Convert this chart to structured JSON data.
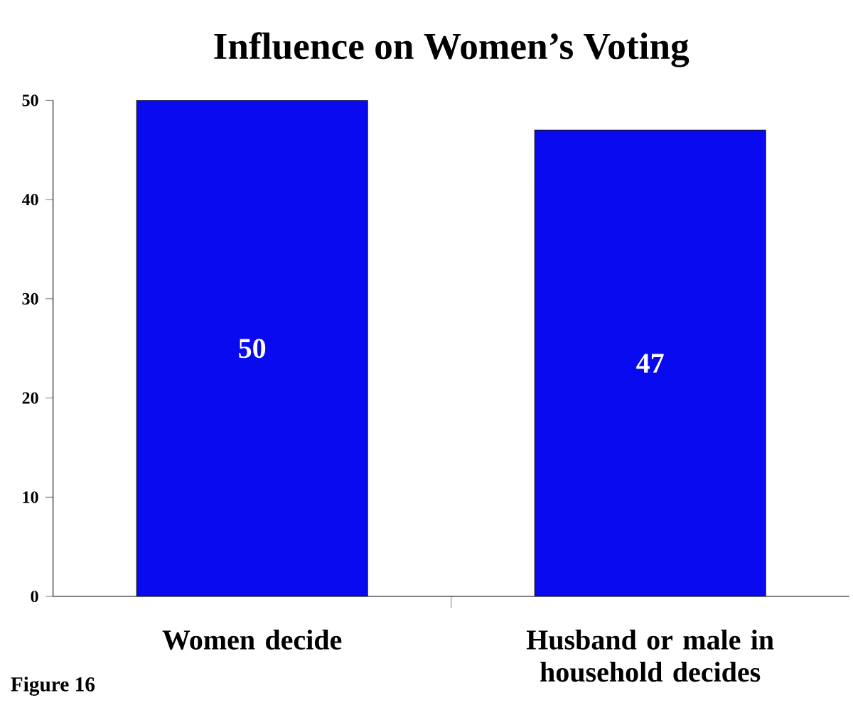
{
  "chart_data": {
    "type": "bar",
    "title": "Influence on Women’s Voting",
    "categories": [
      "Women decide",
      "Husband or male in household decides"
    ],
    "values": [
      50,
      47
    ],
    "color": "#0a0af0",
    "ylim": [
      0,
      50
    ],
    "yticks": [
      0,
      10,
      20,
      30,
      40,
      50
    ],
    "data_labels": true,
    "grid": false,
    "annotations": [
      "Figure 16"
    ]
  }
}
